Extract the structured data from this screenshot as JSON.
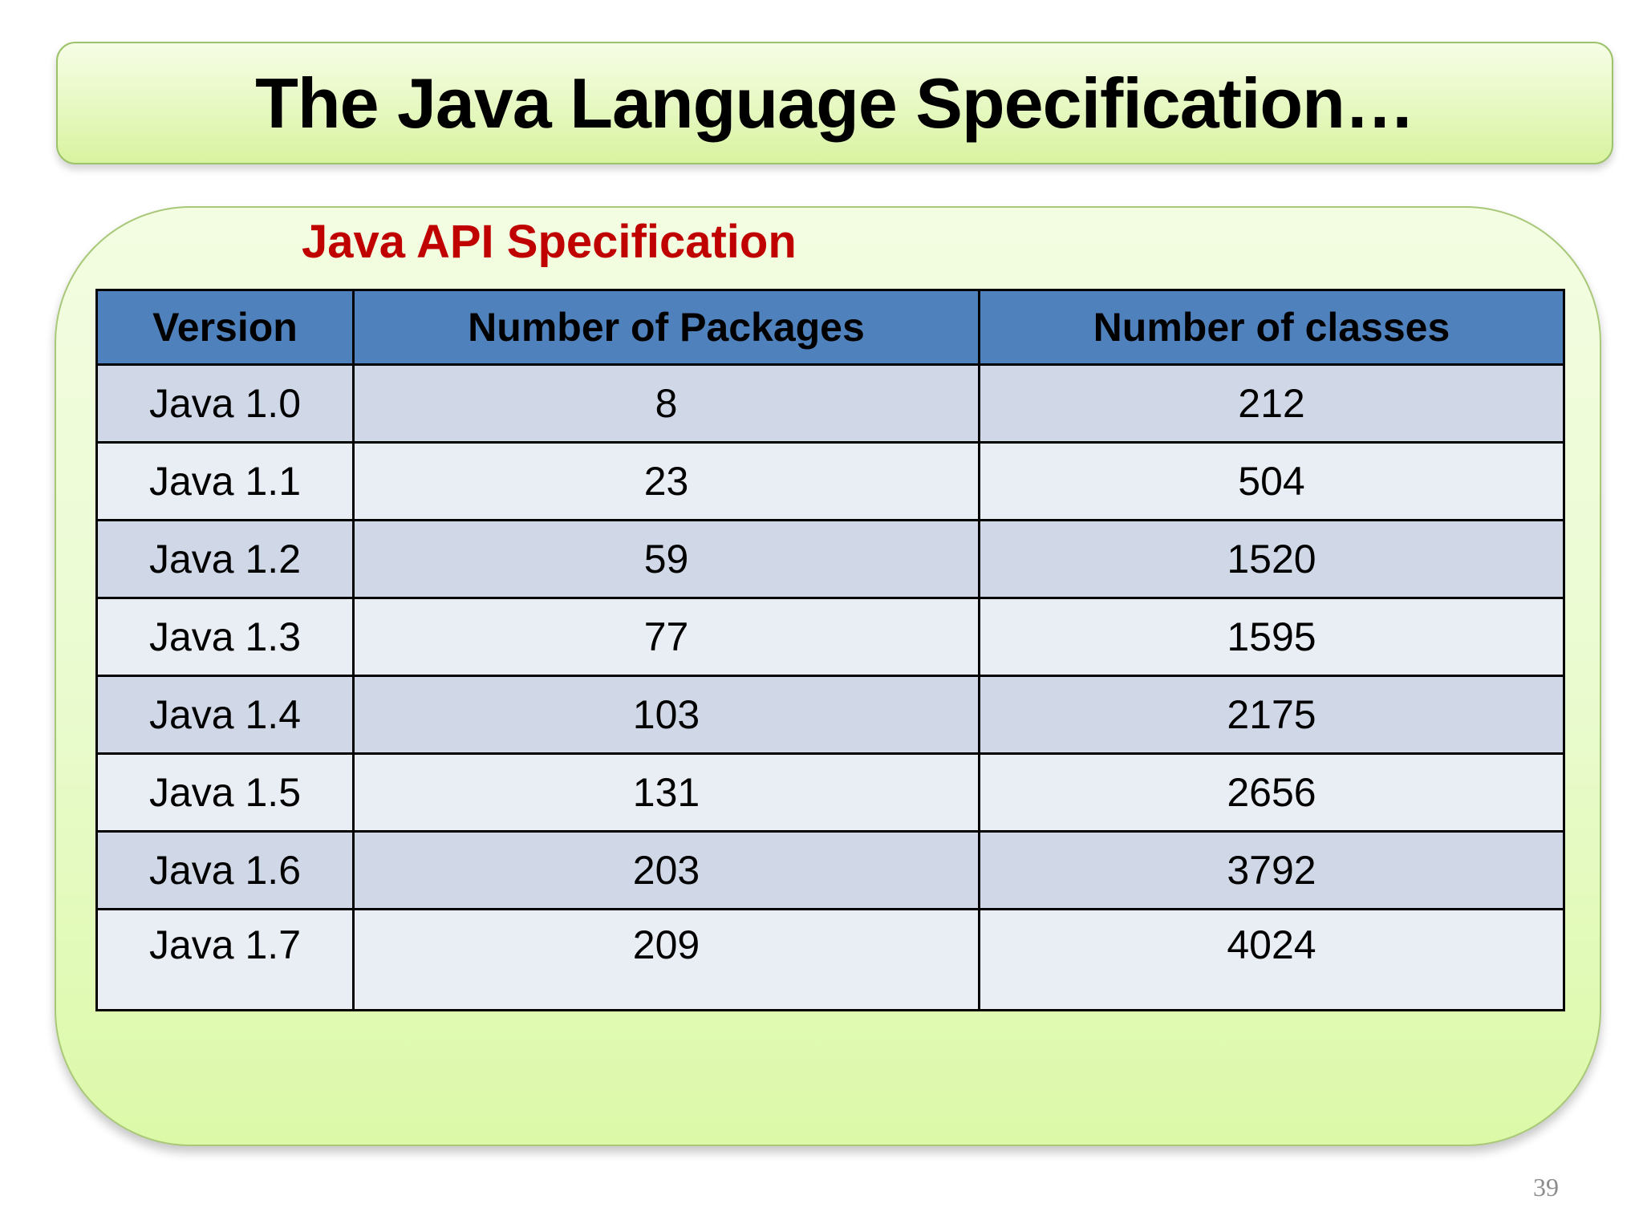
{
  "slide": {
    "title": "The Java Language Specification…",
    "subtitle": "Java API Specification",
    "page_number": "39"
  },
  "table": {
    "headers": [
      "Version",
      "Number of Packages",
      "Number of classes"
    ],
    "rows": [
      [
        "Java 1.0",
        "8",
        "212"
      ],
      [
        "Java 1.1",
        "23",
        "504"
      ],
      [
        "Java 1.2",
        "59",
        "1520"
      ],
      [
        "Java 1.3",
        "77",
        "1595"
      ],
      [
        "Java 1.4",
        "103",
        "2175"
      ],
      [
        "Java 1.5",
        "131",
        "2656"
      ],
      [
        "Java 1.6",
        "203",
        "3792"
      ],
      [
        "Java 1.7",
        "209",
        "4024"
      ]
    ]
  },
  "colors": {
    "title_bar_fill": "#e6f8c0",
    "panel_fill": "#eafbd0",
    "subtitle_text": "#c00000",
    "header_fill": "#4f81bd",
    "row_band_dark": "#d0d8e8",
    "row_band_light": "#e9edf4"
  }
}
